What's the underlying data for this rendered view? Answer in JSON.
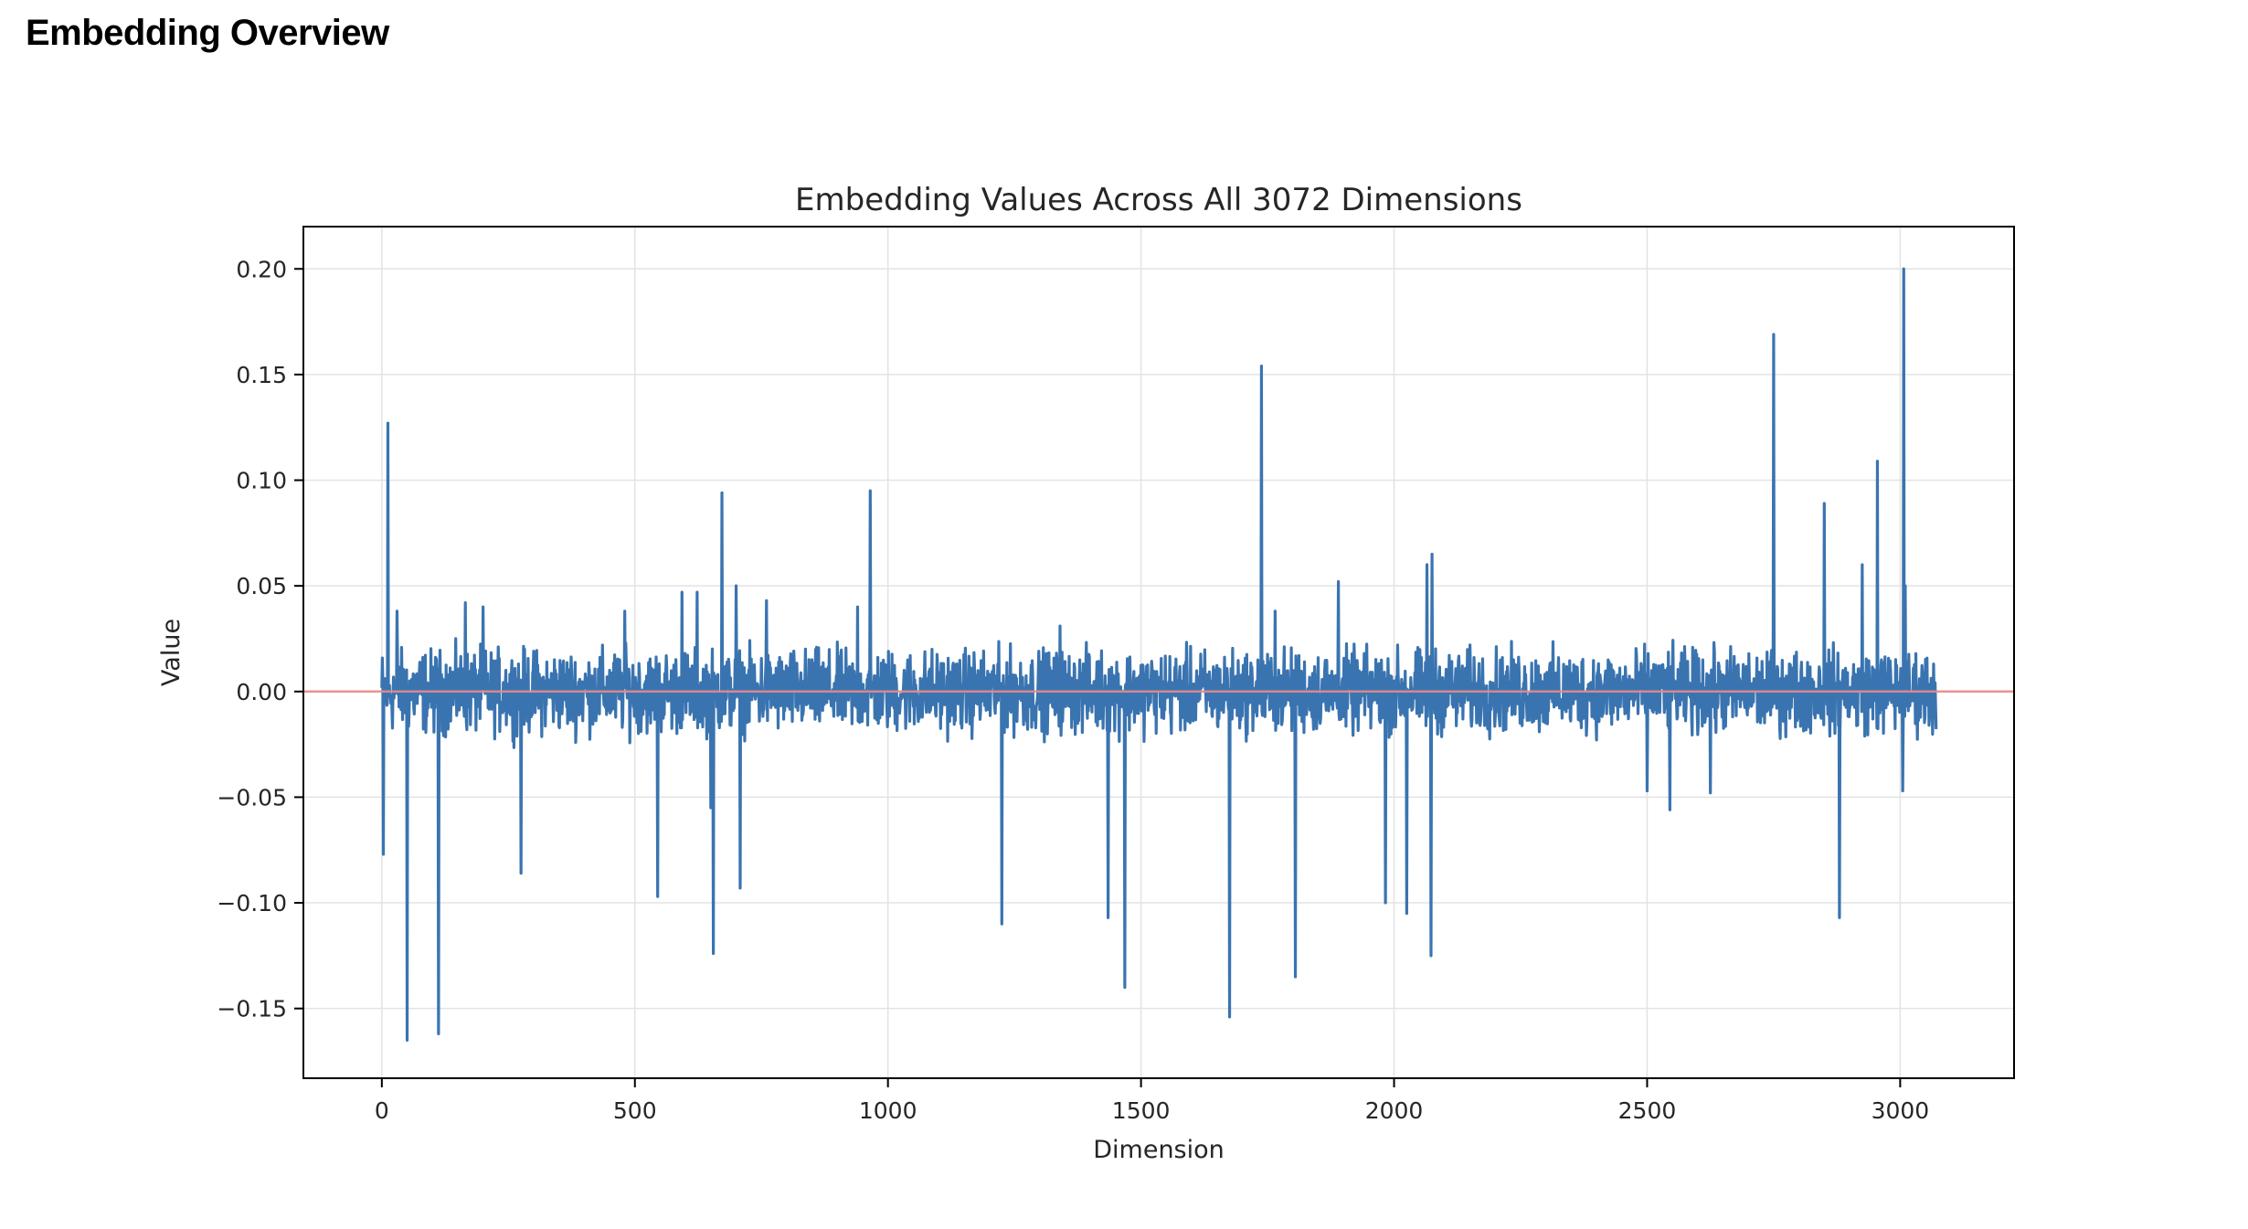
{
  "page": {
    "heading": "Embedding Overview"
  },
  "colors": {
    "series": "#3A74B0",
    "zero_line": "#E88A8A",
    "grid": "#E3E3E3",
    "axis": "#000000",
    "text": "#262626"
  },
  "chart_data": {
    "type": "line",
    "title": "Embedding Values Across All 3072 Dimensions",
    "xlabel": "Dimension",
    "ylabel": "Value",
    "xlim": [
      -155,
      3225
    ],
    "ylim": [
      -0.183,
      0.22
    ],
    "xticks": [
      0,
      500,
      1000,
      1500,
      2000,
      2500,
      3000
    ],
    "xtick_labels": [
      "0",
      "500",
      "1000",
      "1500",
      "2000",
      "2500",
      "3000"
    ],
    "yticks": [
      -0.15,
      -0.1,
      -0.05,
      0.0,
      0.05,
      0.1,
      0.15,
      0.2
    ],
    "ytick_labels": [
      "−0.15",
      "−0.10",
      "−0.05",
      "0.00",
      "0.05",
      "0.10",
      "0.15",
      "0.20"
    ],
    "grid": true,
    "reference_line": {
      "y": 0.0,
      "color": "red",
      "alpha": 0.4
    },
    "series": [
      {
        "name": "",
        "n_points": 3072,
        "noise_amplitude": 0.02,
        "notable_points": [
          [
            3,
            -0.077
          ],
          [
            12,
            0.127
          ],
          [
            30,
            0.038
          ],
          [
            50,
            -0.165
          ],
          [
            112,
            -0.162
          ],
          [
            165,
            0.042
          ],
          [
            200,
            0.04
          ],
          [
            275,
            -0.086
          ],
          [
            480,
            0.038
          ],
          [
            545,
            -0.097
          ],
          [
            593,
            0.047
          ],
          [
            623,
            0.047
          ],
          [
            650,
            -0.055
          ],
          [
            655,
            -0.124
          ],
          [
            672,
            0.094
          ],
          [
            700,
            0.05
          ],
          [
            708,
            -0.093
          ],
          [
            760,
            0.043
          ],
          [
            940,
            0.04
          ],
          [
            965,
            0.095
          ],
          [
            1225,
            -0.11
          ],
          [
            1340,
            0.031
          ],
          [
            1435,
            -0.107
          ],
          [
            1468,
            -0.14
          ],
          [
            1675,
            -0.154
          ],
          [
            1738,
            0.154
          ],
          [
            1765,
            0.038
          ],
          [
            1805,
            -0.135
          ],
          [
            1890,
            0.052
          ],
          [
            1983,
            -0.1
          ],
          [
            2025,
            -0.105
          ],
          [
            2065,
            0.06
          ],
          [
            2073,
            -0.125
          ],
          [
            2075,
            0.065
          ],
          [
            2500,
            -0.047
          ],
          [
            2545,
            -0.056
          ],
          [
            2625,
            -0.048
          ],
          [
            2750,
            0.169
          ],
          [
            2850,
            0.089
          ],
          [
            2880,
            -0.107
          ],
          [
            2925,
            0.06
          ],
          [
            2955,
            0.109
          ],
          [
            3005,
            -0.047
          ],
          [
            3007,
            0.2
          ],
          [
            3010,
            0.05
          ]
        ]
      }
    ]
  }
}
